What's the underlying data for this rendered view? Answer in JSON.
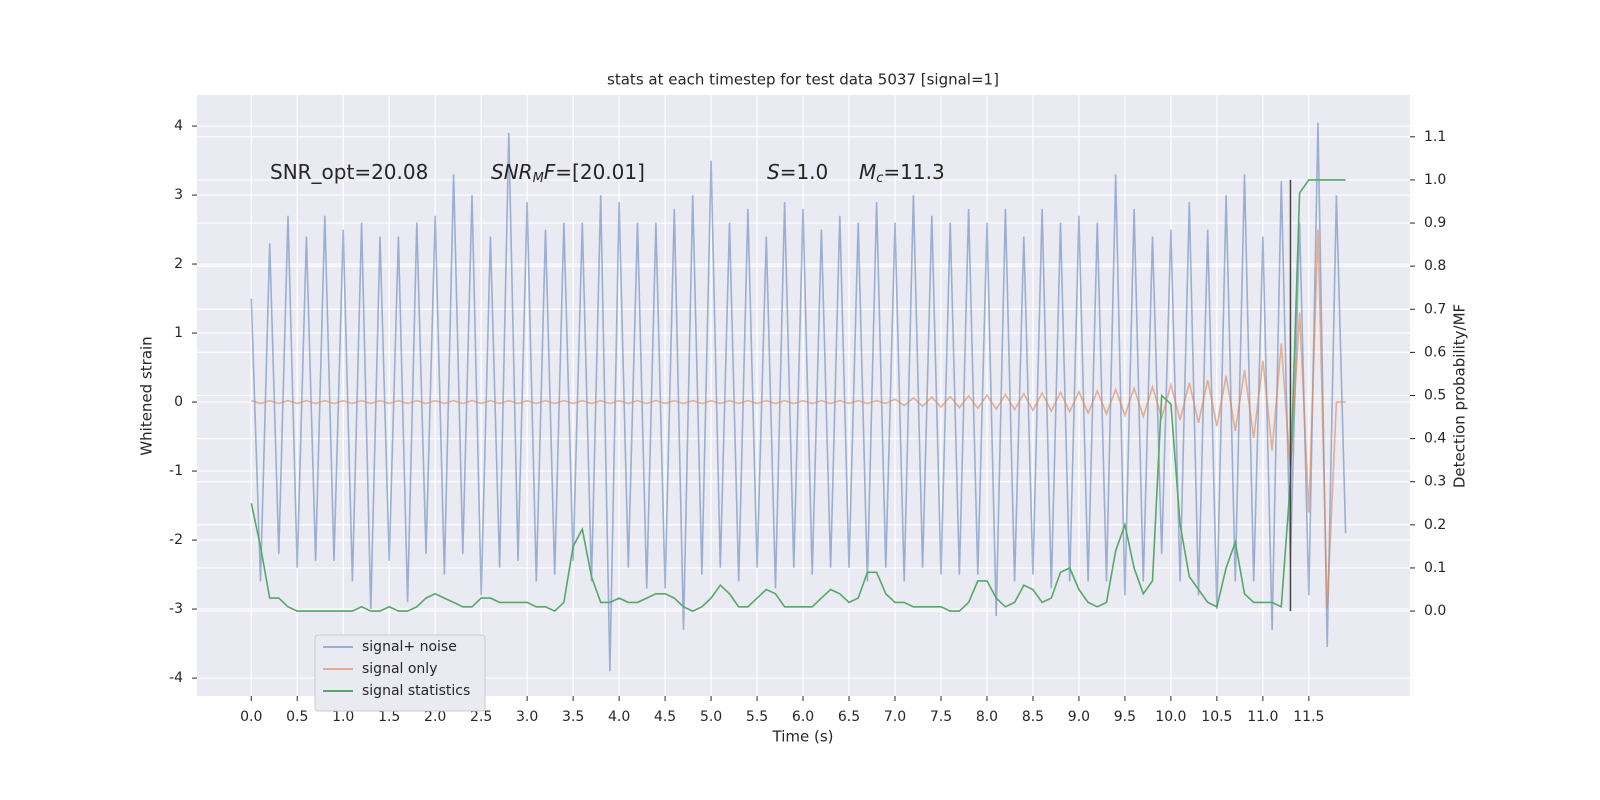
{
  "chart_data": {
    "type": "line",
    "title": "stats at each timestep for test data 5037 [signal=1]",
    "xlabel": "Time (s)",
    "ylabel": "Whitened strain",
    "y2label": "Detection probability/MF",
    "annotations": [
      [
        {
          "t": "SNR_opt=20.08"
        }
      ],
      [
        {
          "t": "SNR",
          "italic": true
        },
        {
          "t": "M",
          "italic": true,
          "sub": true
        },
        {
          "t": "F",
          "italic": true
        },
        {
          "t": "=[20.01]"
        }
      ],
      [
        {
          "t": "S",
          "italic": true
        },
        {
          "t": "=1.0"
        }
      ],
      [
        {
          "t": "M",
          "italic": true
        },
        {
          "t": "c",
          "italic": true,
          "sub": true
        },
        {
          "t": "=11.3"
        }
      ]
    ],
    "x": [
      0.0,
      0.1,
      0.2,
      0.3,
      0.4,
      0.5,
      0.6,
      0.7,
      0.8,
      0.9,
      1.0,
      1.1,
      1.2,
      1.3,
      1.4,
      1.5,
      1.6,
      1.7,
      1.8,
      1.9,
      2.0,
      2.1,
      2.2,
      2.3,
      2.4,
      2.5,
      2.6,
      2.7,
      2.8,
      2.9,
      3.0,
      3.1,
      3.2,
      3.3,
      3.4,
      3.5,
      3.6,
      3.7,
      3.8,
      3.9,
      4.0,
      4.1,
      4.2,
      4.3,
      4.4,
      4.5,
      4.6,
      4.7,
      4.8,
      4.9,
      5.0,
      5.1,
      5.2,
      5.3,
      5.4,
      5.5,
      5.6,
      5.7,
      5.8,
      5.9,
      6.0,
      6.1,
      6.2,
      6.3,
      6.4,
      6.5,
      6.6,
      6.7,
      6.8,
      6.9,
      7.0,
      7.1,
      7.2,
      7.3,
      7.4,
      7.5,
      7.6,
      7.7,
      7.8,
      7.9,
      8.0,
      8.1,
      8.2,
      8.3,
      8.4,
      8.5,
      8.6,
      8.7,
      8.8,
      8.9,
      9.0,
      9.1,
      9.2,
      9.3,
      9.4,
      9.5,
      9.6,
      9.7,
      9.8,
      9.9,
      10.0,
      10.1,
      10.2,
      10.3,
      10.4,
      10.5,
      10.6,
      10.7,
      10.8,
      10.9,
      11.0,
      11.1,
      11.2,
      11.3,
      11.4,
      11.5,
      11.6,
      11.7,
      11.8,
      11.9
    ],
    "series": [
      {
        "name": "signal+ noise",
        "color": "#4c72b0",
        "opacity": 0.5,
        "values": [
          1.5,
          -2.6,
          2.3,
          -2.2,
          2.7,
          -2.4,
          2.4,
          -2.3,
          2.7,
          -2.3,
          2.5,
          -2.6,
          2.6,
          -3.0,
          2.4,
          -2.3,
          2.4,
          -2.9,
          2.6,
          -2.2,
          2.7,
          -2.5,
          3.3,
          -2.2,
          3.0,
          -2.8,
          2.4,
          -2.4,
          3.9,
          -2.3,
          2.9,
          -2.6,
          2.5,
          -2.5,
          2.6,
          -2.3,
          2.6,
          -2.6,
          3.0,
          -3.9,
          2.9,
          -2.4,
          2.6,
          -2.7,
          2.6,
          -2.7,
          2.8,
          -3.3,
          3.0,
          -2.5,
          3.5,
          -2.4,
          2.6,
          -2.6,
          2.8,
          -2.4,
          2.4,
          -2.7,
          2.9,
          -2.4,
          2.8,
          -2.5,
          2.5,
          -2.4,
          2.7,
          -2.4,
          2.6,
          -2.6,
          2.9,
          -2.4,
          2.6,
          -2.6,
          3.0,
          -2.4,
          2.7,
          -2.5,
          2.6,
          -2.5,
          2.8,
          -2.5,
          2.6,
          -3.1,
          2.8,
          -2.6,
          2.4,
          -2.5,
          2.8,
          -2.7,
          2.6,
          -2.6,
          2.7,
          -2.6,
          2.6,
          -2.6,
          3.3,
          -2.8,
          2.8,
          -2.6,
          2.4,
          -2.2,
          2.5,
          -2.6,
          2.9,
          -2.8,
          2.5,
          -3.0,
          3.0,
          -2.6,
          3.3,
          -2.6,
          2.4,
          -3.3,
          3.2,
          -2.3,
          2.6,
          -2.8,
          4.05,
          -3.55,
          3.0,
          -1.9
        ]
      },
      {
        "name": "signal only",
        "color": "#dd8452",
        "opacity": 0.6,
        "values": [
          0.02,
          -0.02,
          0.02,
          -0.02,
          0.02,
          -0.02,
          0.02,
          -0.02,
          0.02,
          -0.02,
          0.02,
          -0.02,
          0.02,
          -0.02,
          0.02,
          -0.02,
          0.02,
          -0.02,
          0.02,
          -0.02,
          0.02,
          -0.02,
          0.02,
          -0.02,
          0.02,
          -0.02,
          0.02,
          -0.02,
          0.02,
          -0.02,
          0.02,
          -0.02,
          0.02,
          -0.02,
          0.02,
          -0.02,
          0.02,
          -0.02,
          0.02,
          -0.02,
          0.02,
          -0.02,
          0.02,
          -0.02,
          0.02,
          -0.02,
          0.02,
          -0.02,
          0.02,
          -0.02,
          0.02,
          -0.02,
          0.02,
          -0.02,
          0.02,
          -0.02,
          0.02,
          -0.02,
          0.02,
          -0.02,
          0.02,
          -0.02,
          0.02,
          -0.02,
          0.02,
          -0.02,
          0.02,
          -0.02,
          0.02,
          -0.02,
          0.04,
          -0.05,
          0.06,
          -0.06,
          0.07,
          -0.07,
          0.08,
          -0.08,
          0.09,
          -0.09,
          0.1,
          -0.1,
          0.11,
          -0.11,
          0.12,
          -0.12,
          0.13,
          -0.13,
          0.14,
          -0.14,
          0.15,
          -0.16,
          0.16,
          -0.17,
          0.18,
          -0.19,
          0.2,
          -0.21,
          0.22,
          -0.23,
          0.25,
          -0.26,
          0.28,
          -0.3,
          0.32,
          -0.35,
          0.38,
          -0.42,
          0.46,
          -0.52,
          0.6,
          -0.7,
          0.85,
          -1.0,
          1.3,
          -1.6,
          2.5,
          -3.0,
          0.0,
          0.0
        ]
      },
      {
        "name": "signal statistics",
        "color": "#55a868",
        "axis": "y2",
        "opacity": 1,
        "values": [
          0.25,
          0.15,
          0.03,
          0.03,
          0.01,
          0.0,
          0.0,
          0.0,
          0.0,
          0.0,
          0.0,
          0.0,
          0.01,
          0.0,
          0.0,
          0.01,
          0.0,
          0.0,
          0.01,
          0.03,
          0.04,
          0.03,
          0.02,
          0.01,
          0.01,
          0.03,
          0.03,
          0.02,
          0.02,
          0.02,
          0.02,
          0.01,
          0.01,
          0.0,
          0.02,
          0.15,
          0.19,
          0.08,
          0.02,
          0.02,
          0.03,
          0.02,
          0.02,
          0.03,
          0.04,
          0.04,
          0.03,
          0.01,
          0.0,
          0.01,
          0.03,
          0.06,
          0.04,
          0.01,
          0.01,
          0.03,
          0.05,
          0.04,
          0.01,
          0.01,
          0.01,
          0.01,
          0.03,
          0.05,
          0.04,
          0.02,
          0.03,
          0.09,
          0.09,
          0.04,
          0.02,
          0.02,
          0.01,
          0.01,
          0.01,
          0.01,
          0.0,
          0.0,
          0.02,
          0.07,
          0.07,
          0.03,
          0.01,
          0.02,
          0.06,
          0.05,
          0.02,
          0.03,
          0.09,
          0.1,
          0.05,
          0.02,
          0.01,
          0.02,
          0.14,
          0.2,
          0.1,
          0.04,
          0.07,
          0.5,
          0.48,
          0.2,
          0.08,
          0.05,
          0.02,
          0.01,
          0.1,
          0.16,
          0.04,
          0.02,
          0.02,
          0.02,
          0.01,
          0.3,
          0.97,
          1.0,
          1.0,
          1.0,
          1.0,
          1.0
        ]
      }
    ],
    "vline": {
      "x": 11.3,
      "color": "#444444"
    },
    "xlim": [
      -0.59,
      12.6
    ],
    "ylim": [
      -4.26,
      4.45
    ],
    "y2lim": [
      -0.197,
      1.197
    ],
    "xticks": [
      {
        "value": 0,
        "label": "0.0"
      },
      0.5,
      {
        "value": 1,
        "label": "1.0"
      },
      1.5,
      {
        "value": 2,
        "label": "2.0"
      },
      2.5,
      {
        "value": 3,
        "label": "3.0"
      },
      3.5,
      {
        "value": 4,
        "label": "4.0"
      },
      4.5,
      {
        "value": 5,
        "label": "5.0"
      },
      5.5,
      {
        "value": 6,
        "label": "6.0"
      },
      6.5,
      {
        "value": 7,
        "label": "7.0"
      },
      7.5,
      {
        "value": 8,
        "label": "8.0"
      },
      8.5,
      {
        "value": 9,
        "label": "9.0"
      },
      9.5,
      {
        "value": 10,
        "label": "10.0"
      },
      10.5,
      {
        "value": 11,
        "label": "11.0"
      },
      11.5
    ],
    "yticks": [
      -4,
      -3,
      -2,
      -1,
      0,
      1,
      2,
      3,
      4
    ],
    "y2ticks": [
      {
        "value": 0,
        "label": "0.0"
      },
      0.1,
      0.2,
      0.3,
      0.4,
      0.5,
      0.6,
      0.7,
      0.8,
      0.9,
      {
        "value": 1,
        "label": "1.0"
      },
      1.1
    ],
    "grid": true,
    "legend": "lower left",
    "background": "#eaeaf2"
  }
}
